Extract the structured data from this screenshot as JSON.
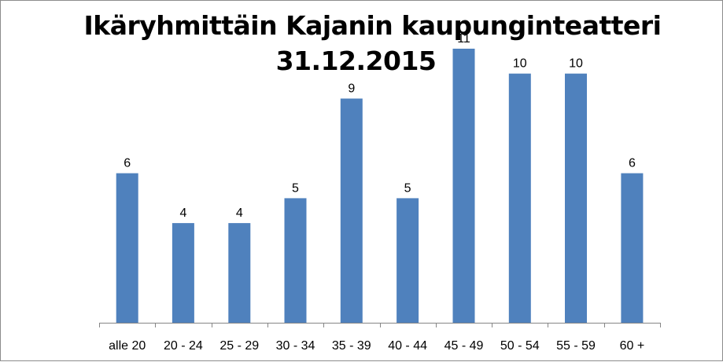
{
  "chart_data": {
    "type": "bar",
    "title": [
      "Ikäryhmittäin Kajanin kaupunginteatteri",
      "31.12.2015"
    ],
    "categories": [
      "alle 20",
      "20 - 24",
      "25 - 29",
      "30 - 34",
      "35 - 39",
      "40 - 44",
      "45 - 49",
      "50 - 54",
      "55 - 59",
      "60 +"
    ],
    "values": [
      6,
      4,
      4,
      5,
      9,
      5,
      11,
      10,
      10,
      6
    ],
    "xlabel": "",
    "ylabel": "",
    "ylim": [
      0,
      11
    ],
    "grid": false,
    "legend": "none",
    "bar_color": "#4f81bd",
    "data_labels": true
  }
}
